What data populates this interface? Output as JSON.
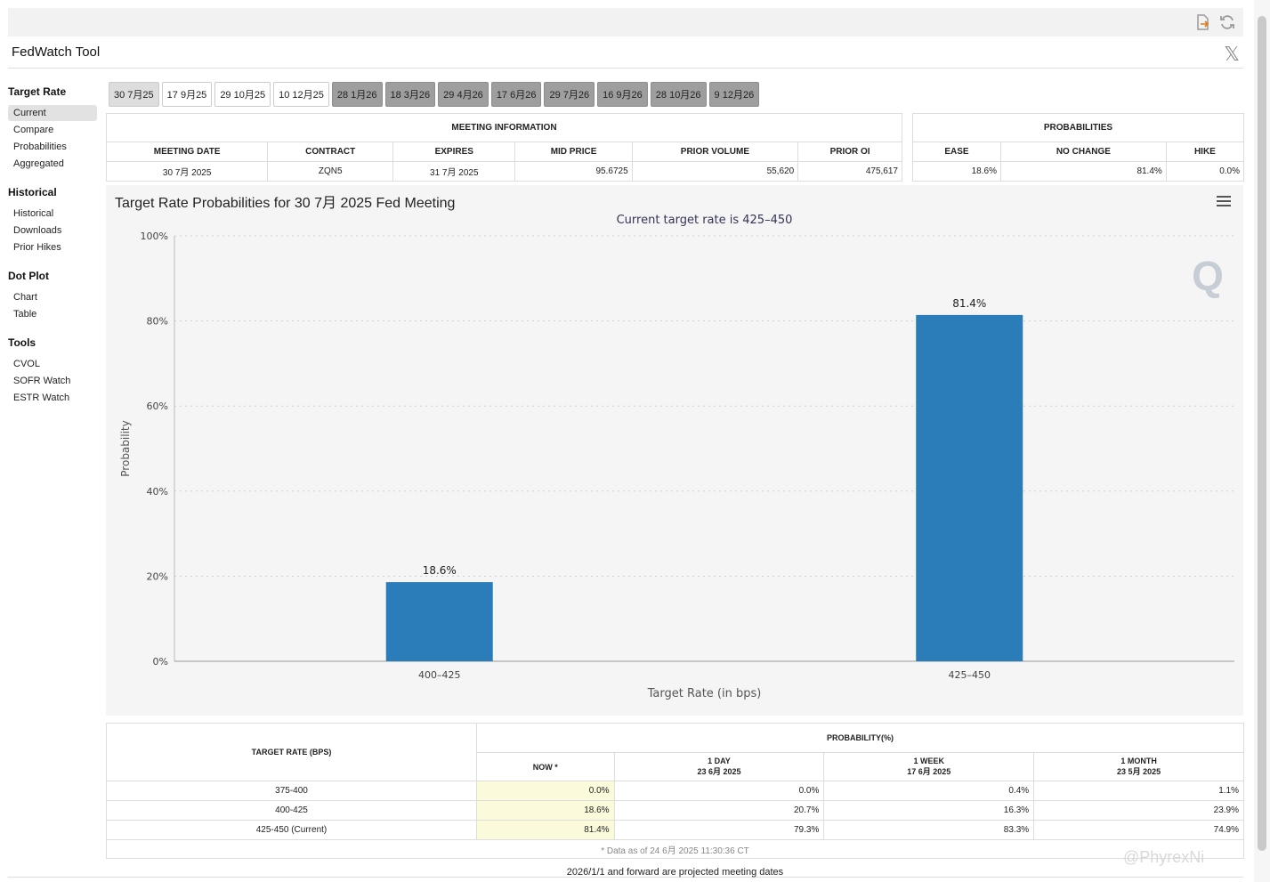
{
  "app": {
    "title": "FedWatch Tool"
  },
  "sidebar": [
    {
      "heading": "Target Rate",
      "items": [
        "Current",
        "Compare",
        "Probabilities",
        "Aggregated"
      ]
    },
    {
      "heading": "Historical",
      "items": [
        "Historical",
        "Downloads",
        "Prior Hikes"
      ]
    },
    {
      "heading": "Dot Plot",
      "items": [
        "Chart",
        "Table"
      ]
    },
    {
      "heading": "Tools",
      "items": [
        "CVOL",
        "SOFR Watch",
        "ESTR Watch"
      ]
    }
  ],
  "meeting_tabs": [
    "30 7月25",
    "17 9月25",
    "29 10月25",
    "10 12月25",
    "28 1月26",
    "18 3月26",
    "29 4月26",
    "17 6月26",
    "29 7月26",
    "16 9月26",
    "28 10月26",
    "9 12月26"
  ],
  "meeting_info": {
    "caption": "MEETING INFORMATION",
    "headers": [
      "MEETING DATE",
      "CONTRACT",
      "EXPIRES",
      "MID PRICE",
      "PRIOR VOLUME",
      "PRIOR OI"
    ],
    "values": [
      "30 7月 2025",
      "ZQN5",
      "31 7月 2025",
      "95.6725",
      "55,620",
      "475,617"
    ]
  },
  "probabilities": {
    "caption": "PROBABILITIES",
    "headers": [
      "EASE",
      "NO CHANGE",
      "HIKE"
    ],
    "values": [
      "18.6%",
      "81.4%",
      "0.0%"
    ]
  },
  "chart_title": "Target Rate Probabilities for 30 7月 2025 Fed Meeting",
  "chart_data": {
    "type": "bar",
    "title": "Target Rate Probabilities for 30 7月 2025 Fed Meeting",
    "subtitle": "Current target rate is 425–450",
    "categories": [
      "400–425",
      "425–450"
    ],
    "values": [
      18.6,
      81.4
    ],
    "data_labels": [
      "18.6%",
      "81.4%"
    ],
    "xlabel": "Target Rate (in bps)",
    "ylabel": "Probability",
    "ylim": [
      0,
      100
    ],
    "yticks": [
      "0%",
      "20%",
      "40%",
      "60%",
      "80%",
      "100%"
    ],
    "grid": true,
    "bar_color": "#2a7db8",
    "watermark": "Q"
  },
  "prob_table": {
    "col_target": "TARGET RATE (BPS)",
    "col_prob": "PROBABILITY(%)",
    "sub_headers": [
      {
        "label": "NOW *",
        "date": ""
      },
      {
        "label": "1 DAY",
        "date": "23 6月 2025"
      },
      {
        "label": "1 WEEK",
        "date": "17 6月 2025"
      },
      {
        "label": "1 MONTH",
        "date": "23 5月 2025"
      }
    ],
    "rows": [
      {
        "rate": "375-400",
        "vals": [
          "0.0%",
          "0.0%",
          "0.4%",
          "1.1%"
        ]
      },
      {
        "rate": "400-425",
        "vals": [
          "18.6%",
          "20.7%",
          "16.3%",
          "23.9%"
        ]
      },
      {
        "rate": "425-450 (Current)",
        "vals": [
          "81.4%",
          "79.3%",
          "83.3%",
          "74.9%"
        ]
      }
    ],
    "note": "* Data as of 24 6月 2025 11:30:36 CT"
  },
  "footer": "2026/1/1 and forward are projected meeting dates",
  "watermark_text": "@PhyrexNi",
  "colors": {
    "accent": "#2a7db8",
    "now_highlight": "#fbfbdc",
    "projected_tab": "#9e9e9e"
  }
}
